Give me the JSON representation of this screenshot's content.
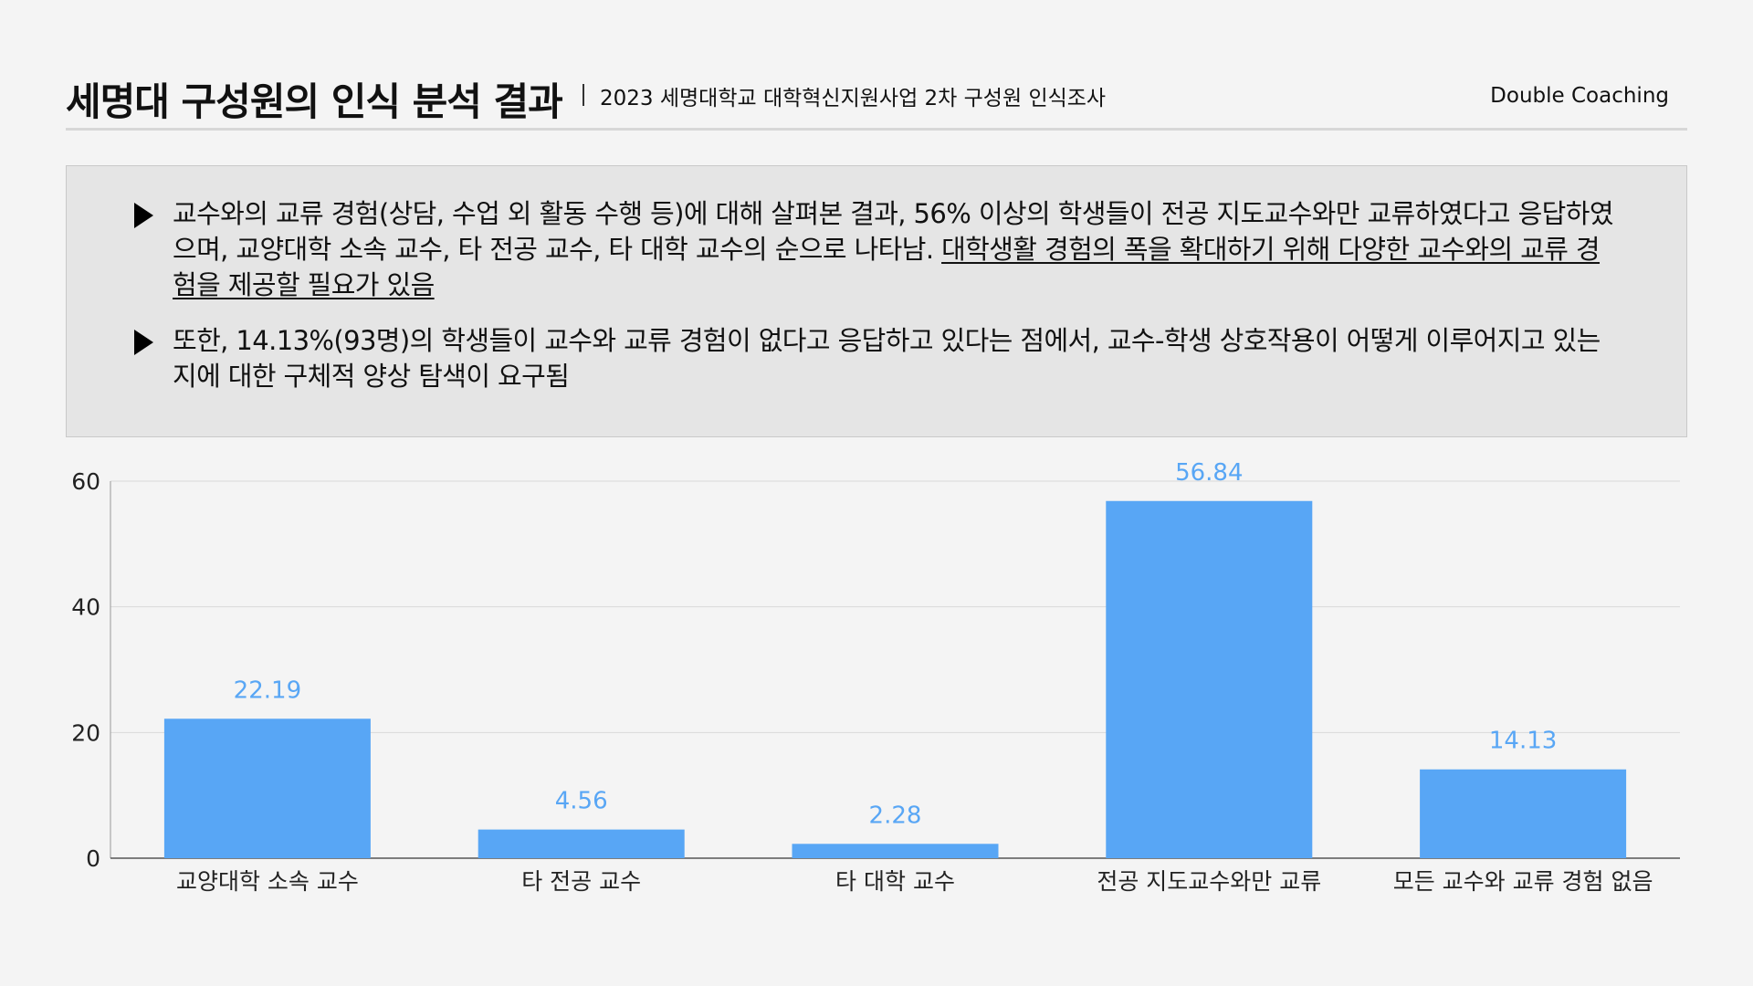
{
  "header": {
    "title": "세명대 구성원의 인식 분석 결과",
    "subtitle": "2023 세명대학교 대학혁신지원사업  2차 구성원 인식조사",
    "brand": "Double Coaching"
  },
  "notes": {
    "bullet_1_plain": "교수와의 교류 경험(상담, 수업 외 활동 수행 등)에 대해 살펴본 결과, 56% 이상의 학생들이 전공 지도교수와만 교류하였다고 응답하였으며, 교양대학 소속 교수, 타 전공 교수, 타 대학 교수의 순으로 나타남. ",
    "bullet_1_underlined": "대학생활 경험의 폭을 확대하기 위해 다양한 교수와의 교류 경험을 제공할 필요가 있음",
    "bullet_2": "또한, 14.13%(93명)의 학생들이 교수와 교류 경험이 없다고 응답하고 있다는 점에서, 교수-학생 상호작용이 어떻게 이루어지고 있는지에 대한 구체적 양상 탐색이 요구됨"
  },
  "chart_data": {
    "type": "bar",
    "categories": [
      "교양대학 소속 교수",
      "타 전공 교수",
      "타 대학 교수",
      "전공 지도교수와만 교류",
      "모든 교수와 교류 경험 없음"
    ],
    "values": [
      22.19,
      4.56,
      2.28,
      56.84,
      14.13
    ],
    "data_labels": [
      "22.19",
      "4.56",
      "2.28",
      "56.84",
      "14.13"
    ],
    "yticks": [
      0,
      20,
      40,
      60
    ],
    "ylim": [
      0,
      60
    ],
    "grid": true,
    "colors": {
      "bar": "#58a6f5",
      "label": "#58a6f5",
      "grid": "#d9d9d9",
      "axis": "#555555"
    }
  }
}
